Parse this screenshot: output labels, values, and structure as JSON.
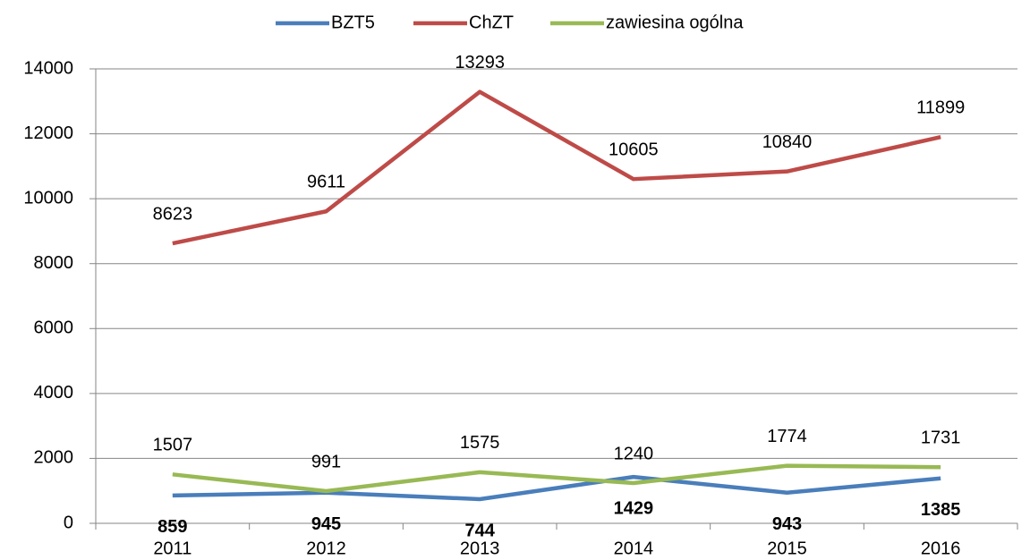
{
  "chart_data": {
    "type": "line",
    "categories": [
      "2011",
      "2012",
      "2013",
      "2014",
      "2015",
      "2016"
    ],
    "series": [
      {
        "name": "BZT5",
        "color": "#4a7ebb",
        "values": [
          859,
          945,
          744,
          1429,
          943,
          1385
        ]
      },
      {
        "name": "ChZT",
        "color": "#be4b48",
        "values": [
          8623,
          9611,
          13293,
          10605,
          10840,
          11899
        ]
      },
      {
        "name": "zawiesina ogólna",
        "color": "#98b954",
        "values": [
          1507,
          991,
          1575,
          1240,
          1774,
          1731
        ]
      }
    ],
    "ylim": [
      0,
      14000
    ],
    "yticks": [
      0,
      2000,
      4000,
      6000,
      8000,
      10000,
      12000,
      14000
    ],
    "grid": true,
    "legend": "top"
  }
}
